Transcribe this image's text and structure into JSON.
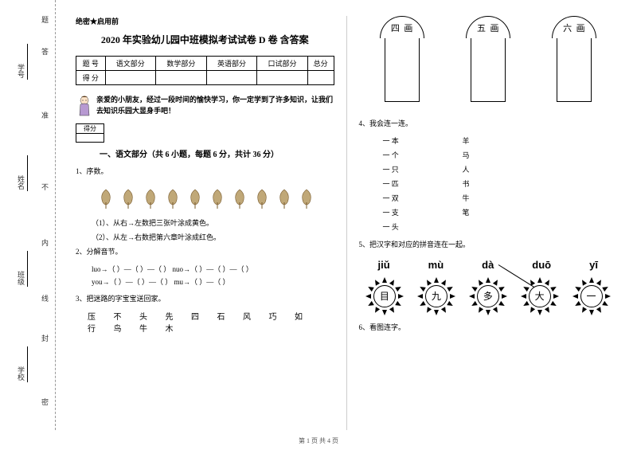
{
  "binding": {
    "labels": [
      "学号",
      "姓名",
      "班级",
      "学校"
    ],
    "markers": [
      "题",
      "答",
      "准",
      "不",
      "内",
      "线",
      "封",
      "密"
    ]
  },
  "confidential": "绝密★启用前",
  "title": "2020 年实验幼儿园中班模拟考试试卷 D 卷  含答案",
  "score_table": {
    "headers": [
      "题   号",
      "语文部分",
      "数学部分",
      "英语部分",
      "口试部分",
      "总分"
    ],
    "score_row": "得   分"
  },
  "greeting": "亲爱的小朋友，经过一段时间的愉快学习，你一定学到了许多知识，让我们去知识乐园大显身手吧！",
  "score_box_label": "得分",
  "section1_title": "一、语文部分（共 6 小题，每题 6 分，共计 36 分）",
  "q1": {
    "num": "1、序数。",
    "sub1": "（1）、从右→左数把三张叶涂成黄色。",
    "sub2": "（2）、从左→右数把第六章叶涂成红色。"
  },
  "q2": {
    "num": "2、分解音节。",
    "line1": "luo→（   ）—（   ）—（   ）        nuo→（   ）—（   ）—（   ）",
    "line2": "you→（   ）—（   ）—（   ）        mu→（   ）—（   ）"
  },
  "q3": {
    "num": "3、把迷路的字宝宝送回家。",
    "chars": "压  不  头  先  四  石  风  巧  如  行  鸟  牛  木"
  },
  "tablets": [
    {
      "main": "四",
      "sub": "画"
    },
    {
      "main": "五",
      "sub": "画"
    },
    {
      "main": "六",
      "sub": "画"
    }
  ],
  "q4": {
    "num": "4、我会连一连。",
    "left": [
      "一  本",
      "一  个",
      "一  只",
      "一  匹",
      "一  双",
      "一  支",
      "一  头"
    ],
    "right": [
      "羊",
      "马",
      "人",
      "书",
      "牛",
      "笔"
    ]
  },
  "q5": {
    "num": "5、把汉字和对应的拼音连在一起。",
    "pinyin": [
      "jiǔ",
      "mù",
      "dà",
      "duō",
      "yī"
    ],
    "chars": [
      "目",
      "九",
      "多",
      "大",
      "一"
    ]
  },
  "q6": "6、看图连字。",
  "footer": "第 1 页  共 4 页",
  "colors": {
    "leaf": "#c0a878",
    "doll_body": "#b799d1",
    "doll_skin": "#fde3c8"
  }
}
